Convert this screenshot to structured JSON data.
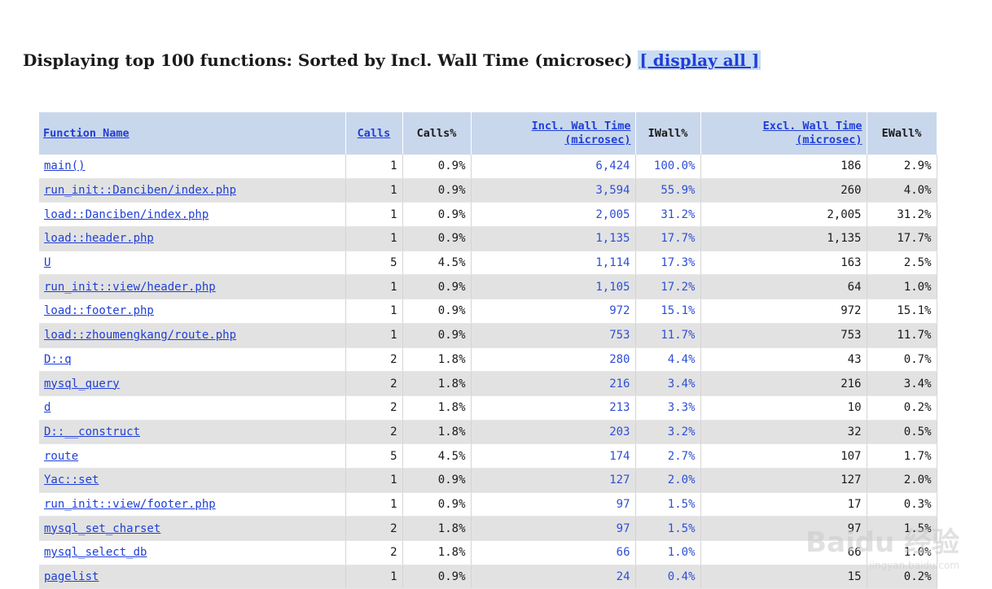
{
  "heading": {
    "text": "Displaying top 100 functions: Sorted by Incl. Wall Time (microsec)",
    "link": "[ display all ]"
  },
  "columns": {
    "fn": "Function Name",
    "calls": "Calls",
    "calls_pct": "Calls%",
    "incl_line1": "Incl. Wall Time",
    "incl_line2": "(microsec)",
    "iwall": "IWall%",
    "excl_line1": "Excl. Wall Time",
    "excl_line2": "(microsec)",
    "ewall": "EWall%"
  },
  "rows": [
    {
      "fn": "main()",
      "calls": "1",
      "calls_pct": "0.9%",
      "incl": "6,424",
      "iwall": "100.0%",
      "excl": "186",
      "ewall": "2.9%"
    },
    {
      "fn": "run_init::Danciben/index.php",
      "calls": "1",
      "calls_pct": "0.9%",
      "incl": "3,594",
      "iwall": "55.9%",
      "excl": "260",
      "ewall": "4.0%"
    },
    {
      "fn": "load::Danciben/index.php",
      "calls": "1",
      "calls_pct": "0.9%",
      "incl": "2,005",
      "iwall": "31.2%",
      "excl": "2,005",
      "ewall": "31.2%"
    },
    {
      "fn": "load::header.php",
      "calls": "1",
      "calls_pct": "0.9%",
      "incl": "1,135",
      "iwall": "17.7%",
      "excl": "1,135",
      "ewall": "17.7%"
    },
    {
      "fn": "U",
      "calls": "5",
      "calls_pct": "4.5%",
      "incl": "1,114",
      "iwall": "17.3%",
      "excl": "163",
      "ewall": "2.5%"
    },
    {
      "fn": "run_init::view/header.php",
      "calls": "1",
      "calls_pct": "0.9%",
      "incl": "1,105",
      "iwall": "17.2%",
      "excl": "64",
      "ewall": "1.0%"
    },
    {
      "fn": "load::footer.php",
      "calls": "1",
      "calls_pct": "0.9%",
      "incl": "972",
      "iwall": "15.1%",
      "excl": "972",
      "ewall": "15.1%"
    },
    {
      "fn": "load::zhoumengkang/route.php",
      "calls": "1",
      "calls_pct": "0.9%",
      "incl": "753",
      "iwall": "11.7%",
      "excl": "753",
      "ewall": "11.7%"
    },
    {
      "fn": "D::q",
      "calls": "2",
      "calls_pct": "1.8%",
      "incl": "280",
      "iwall": "4.4%",
      "excl": "43",
      "ewall": "0.7%"
    },
    {
      "fn": "mysql_query",
      "calls": "2",
      "calls_pct": "1.8%",
      "incl": "216",
      "iwall": "3.4%",
      "excl": "216",
      "ewall": "3.4%"
    },
    {
      "fn": "d",
      "calls": "2",
      "calls_pct": "1.8%",
      "incl": "213",
      "iwall": "3.3%",
      "excl": "10",
      "ewall": "0.2%"
    },
    {
      "fn": "D::__construct",
      "calls": "2",
      "calls_pct": "1.8%",
      "incl": "203",
      "iwall": "3.2%",
      "excl": "32",
      "ewall": "0.5%"
    },
    {
      "fn": "route",
      "calls": "5",
      "calls_pct": "4.5%",
      "incl": "174",
      "iwall": "2.7%",
      "excl": "107",
      "ewall": "1.7%"
    },
    {
      "fn": "Yac::set",
      "calls": "1",
      "calls_pct": "0.9%",
      "incl": "127",
      "iwall": "2.0%",
      "excl": "127",
      "ewall": "2.0%"
    },
    {
      "fn": "run_init::view/footer.php",
      "calls": "1",
      "calls_pct": "0.9%",
      "incl": "97",
      "iwall": "1.5%",
      "excl": "17",
      "ewall": "0.3%"
    },
    {
      "fn": "mysql_set_charset",
      "calls": "2",
      "calls_pct": "1.8%",
      "incl": "97",
      "iwall": "1.5%",
      "excl": "97",
      "ewall": "1.5%"
    },
    {
      "fn": "mysql_select_db",
      "calls": "2",
      "calls_pct": "1.8%",
      "incl": "66",
      "iwall": "1.0%",
      "excl": "66",
      "ewall": "1.0%"
    },
    {
      "fn": "pagelist",
      "calls": "1",
      "calls_pct": "0.9%",
      "incl": "24",
      "iwall": "0.4%",
      "excl": "15",
      "ewall": "0.2%"
    }
  ],
  "watermark": {
    "logo": "Baidu 经验",
    "sub": "jingyan.baidu.com"
  }
}
